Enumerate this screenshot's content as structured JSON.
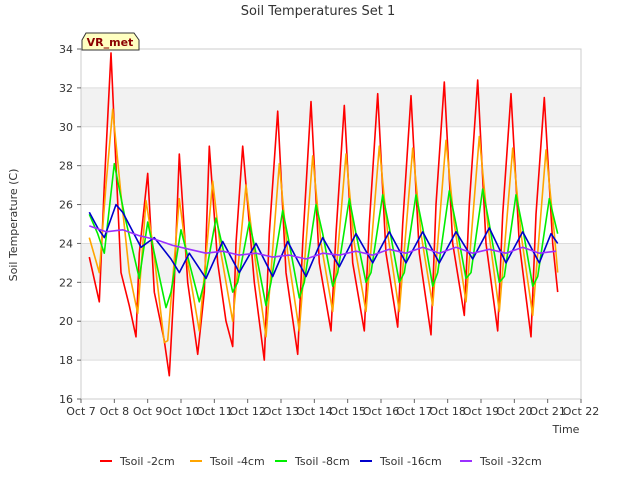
{
  "chart_data": {
    "type": "line",
    "title": "Soil Temperatures Set 1",
    "xlabel": "Time",
    "ylabel": "Soil Temperature (C)",
    "badge": "VR_met",
    "xlim": [
      7,
      22
    ],
    "ylim": [
      16,
      34
    ],
    "x_ticks": [
      {
        "value": 7,
        "label": "Oct 7"
      },
      {
        "value": 8,
        "label": "Oct 8"
      },
      {
        "value": 9,
        "label": "Oct 9"
      },
      {
        "value": 10,
        "label": "Oct 10"
      },
      {
        "value": 11,
        "label": "Oct 11"
      },
      {
        "value": 12,
        "label": "Oct 12"
      },
      {
        "value": 13,
        "label": "Oct 13"
      },
      {
        "value": 14,
        "label": "Oct 14"
      },
      {
        "value": 15,
        "label": "Oct 15"
      },
      {
        "value": 16,
        "label": "Oct 16"
      },
      {
        "value": 17,
        "label": "Oct 17"
      },
      {
        "value": 18,
        "label": "Oct 18"
      },
      {
        "value": 19,
        "label": "Oct 19"
      },
      {
        "value": 20,
        "label": "Oct 20"
      },
      {
        "value": 21,
        "label": "Oct 21"
      },
      {
        "value": 22,
        "label": "Oct 22"
      }
    ],
    "y_ticks": [
      16,
      18,
      20,
      22,
      24,
      26,
      28,
      30,
      32,
      34
    ],
    "grid": "horizontal bands",
    "legend_position": "bottom",
    "series": [
      {
        "name": "Tsoil -2cm",
        "color": "#ff0000",
        "x": [
          7.25,
          7.55,
          7.7,
          7.9,
          8.05,
          8.2,
          8.45,
          8.65,
          8.75,
          9.0,
          9.2,
          9.5,
          9.65,
          9.8,
          9.95,
          10.2,
          10.5,
          10.7,
          10.85,
          11.1,
          11.35,
          11.55,
          11.65,
          11.85,
          12.2,
          12.5,
          12.65,
          12.9,
          13.15,
          13.5,
          13.65,
          13.9,
          14.15,
          14.5,
          14.65,
          14.9,
          15.15,
          15.5,
          15.65,
          15.9,
          16.15,
          16.5,
          16.65,
          16.9,
          17.15,
          17.5,
          17.65,
          17.9,
          18.15,
          18.5,
          18.65,
          18.9,
          19.15,
          19.5,
          19.65,
          19.9,
          20.15,
          20.5,
          20.65,
          20.9,
          21.15,
          21.3
        ],
        "y": [
          23.3,
          21.0,
          27.0,
          33.8,
          28.0,
          22.5,
          20.8,
          19.2,
          23.5,
          27.6,
          21.5,
          19.0,
          17.2,
          22.0,
          28.6,
          22.0,
          18.3,
          21.5,
          29.0,
          23.0,
          20.0,
          18.7,
          24.0,
          29.0,
          22.0,
          18.0,
          24.5,
          30.8,
          22.5,
          18.3,
          24.0,
          31.3,
          23.0,
          19.5,
          24.5,
          31.1,
          23.0,
          19.5,
          25.0,
          31.7,
          23.5,
          19.7,
          25.0,
          31.6,
          23.5,
          19.3,
          26.0,
          32.3,
          24.0,
          20.3,
          26.0,
          32.4,
          24.0,
          19.5,
          25.5,
          31.7,
          24.0,
          19.2,
          25.5,
          31.5,
          24.0,
          21.5
        ]
      },
      {
        "name": "Tsoil -4cm",
        "color": "#ffa500",
        "x": [
          7.25,
          7.55,
          7.75,
          7.95,
          8.2,
          8.45,
          8.7,
          8.95,
          9.15,
          9.5,
          9.6,
          9.95,
          10.2,
          10.55,
          10.95,
          11.2,
          11.55,
          11.95,
          12.2,
          12.55,
          12.95,
          13.2,
          13.55,
          13.95,
          14.2,
          14.55,
          14.95,
          15.2,
          15.55,
          15.95,
          16.2,
          16.55,
          16.95,
          17.2,
          17.55,
          17.95,
          18.2,
          18.55,
          18.95,
          19.2,
          19.55,
          19.95,
          20.2,
          20.55,
          20.95,
          21.2,
          21.3
        ],
        "y": [
          24.3,
          22.5,
          27.0,
          30.9,
          26.5,
          22.5,
          20.4,
          26.2,
          24.0,
          18.9,
          19.0,
          26.3,
          23.0,
          19.5,
          27.2,
          23.5,
          20.0,
          27.0,
          23.5,
          19.2,
          28.1,
          23.5,
          19.5,
          28.5,
          24.0,
          20.5,
          28.6,
          24.0,
          20.5,
          29.0,
          24.5,
          20.5,
          28.9,
          24.5,
          20.8,
          29.3,
          25.0,
          21.0,
          29.5,
          25.0,
          20.5,
          28.9,
          24.5,
          20.3,
          28.8,
          24.5,
          22.5
        ]
      },
      {
        "name": "Tsoil -8cm",
        "color": "#00ee00",
        "x": [
          7.25,
          7.5,
          7.7,
          8.0,
          8.3,
          8.75,
          9.0,
          9.2,
          9.55,
          9.7,
          10.0,
          10.25,
          10.55,
          10.7,
          11.05,
          11.25,
          11.55,
          11.7,
          12.05,
          12.25,
          12.55,
          12.7,
          13.05,
          13.25,
          13.55,
          13.7,
          14.05,
          14.25,
          14.55,
          14.7,
          15.05,
          15.25,
          15.55,
          15.7,
          16.05,
          16.25,
          16.55,
          16.7,
          17.05,
          17.25,
          17.55,
          17.7,
          18.05,
          18.25,
          18.55,
          18.7,
          19.05,
          19.25,
          19.55,
          19.7,
          20.05,
          20.25,
          20.55,
          20.7,
          21.05,
          21.3
        ],
        "y": [
          25.5,
          24.5,
          23.5,
          28.1,
          25.5,
          22.2,
          25.1,
          23.5,
          20.7,
          21.5,
          24.7,
          23.0,
          21.0,
          22.0,
          25.3,
          23.8,
          21.5,
          22.0,
          25.1,
          23.5,
          20.8,
          22.0,
          25.7,
          24.0,
          21.2,
          22.0,
          26.0,
          24.5,
          21.8,
          22.5,
          26.3,
          24.5,
          22.0,
          22.5,
          26.5,
          24.8,
          22.0,
          22.5,
          26.5,
          24.8,
          21.8,
          22.5,
          26.7,
          25.0,
          22.2,
          22.5,
          26.8,
          25.0,
          22.0,
          22.3,
          26.5,
          24.8,
          21.8,
          22.3,
          26.3,
          24.5
        ]
      },
      {
        "name": "Tsoil -16cm",
        "color": "#0000cc",
        "x": [
          7.25,
          7.5,
          7.7,
          8.05,
          8.25,
          8.8,
          9.2,
          9.7,
          9.95,
          10.25,
          10.75,
          11.25,
          11.75,
          12.25,
          12.75,
          13.2,
          13.75,
          14.25,
          14.75,
          15.25,
          15.75,
          16.25,
          16.75,
          17.25,
          17.75,
          18.25,
          18.75,
          19.25,
          19.75,
          20.25,
          20.75,
          21.1,
          21.3
        ],
        "y": [
          25.6,
          24.8,
          24.3,
          26.0,
          25.6,
          23.8,
          24.3,
          23.2,
          22.5,
          23.5,
          22.2,
          24.1,
          22.5,
          24.0,
          22.3,
          24.1,
          22.3,
          24.3,
          22.8,
          24.5,
          23.0,
          24.6,
          23.0,
          24.6,
          23.0,
          24.6,
          23.2,
          24.8,
          23.0,
          24.6,
          23.0,
          24.5,
          24.0
        ]
      },
      {
        "name": "Tsoil -32cm",
        "color": "#9b30ff",
        "x": [
          7.25,
          7.75,
          8.25,
          8.75,
          9.25,
          9.75,
          10.25,
          10.75,
          11.25,
          11.75,
          12.25,
          12.75,
          13.25,
          13.75,
          14.25,
          14.75,
          15.25,
          15.75,
          16.25,
          16.75,
          17.25,
          17.75,
          18.25,
          18.75,
          19.25,
          19.75,
          20.25,
          20.75,
          21.25
        ],
        "y": [
          24.9,
          24.6,
          24.7,
          24.4,
          24.2,
          23.9,
          23.7,
          23.5,
          23.6,
          23.4,
          23.5,
          23.3,
          23.4,
          23.2,
          23.5,
          23.4,
          23.6,
          23.4,
          23.7,
          23.5,
          23.8,
          23.5,
          23.8,
          23.5,
          23.7,
          23.5,
          23.8,
          23.5,
          23.6
        ]
      }
    ]
  }
}
